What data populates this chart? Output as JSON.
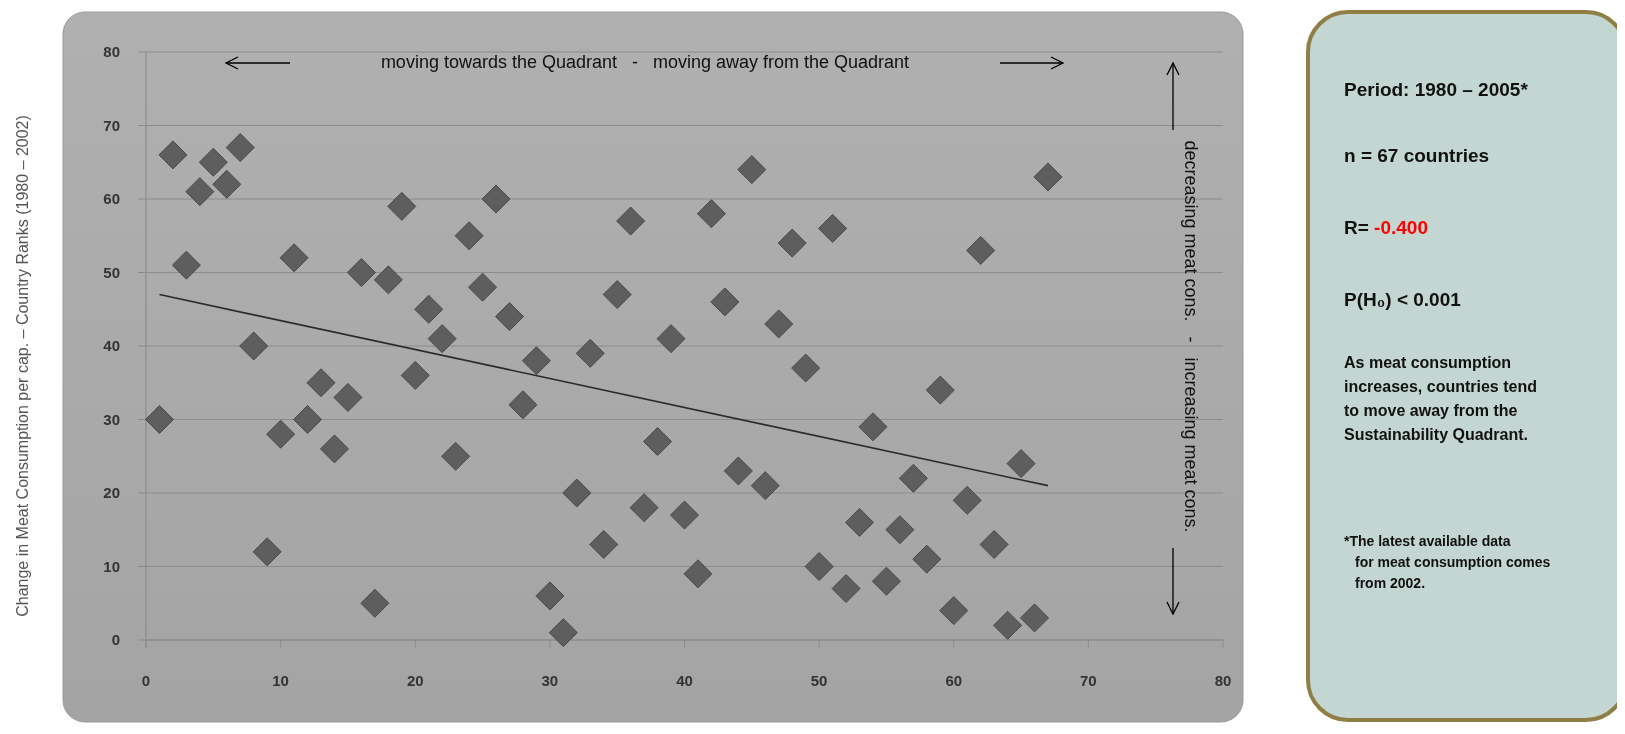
{
  "chart_data": {
    "type": "scatter",
    "ylabel": "Change in Meat Consumption per cap. – Country Ranks (1980 – 2002)",
    "xlim": [
      0,
      80
    ],
    "xticks": [
      0,
      10,
      20,
      30,
      40,
      50,
      60,
      70,
      80
    ],
    "ylim": [
      0,
      80
    ],
    "yticks": [
      0,
      10,
      20,
      30,
      40,
      50,
      60,
      70,
      80
    ],
    "grid": "y",
    "marker": "diamond",
    "series": [
      {
        "color": "#5e5e5e",
        "x": [
          1,
          2,
          3,
          4,
          5,
          6,
          7,
          8,
          9,
          10,
          11,
          12,
          13,
          14,
          15,
          16,
          17,
          18,
          19,
          20,
          21,
          22,
          23,
          24,
          25,
          26,
          27,
          28,
          29,
          30,
          31,
          32,
          33,
          34,
          35,
          36,
          37,
          38,
          39,
          40,
          41,
          42,
          43,
          44,
          45,
          46,
          47,
          48,
          49,
          50,
          51,
          52,
          53,
          54,
          55,
          56,
          57,
          58,
          59,
          60,
          61,
          62,
          63,
          64,
          65,
          66,
          67
        ],
        "values": [
          30,
          66,
          51,
          61,
          65,
          62,
          67,
          40,
          12,
          28,
          52,
          30,
          35,
          26,
          33,
          50,
          5,
          49,
          59,
          36,
          45,
          41,
          25,
          55,
          48,
          60,
          44,
          32,
          38,
          6,
          1,
          20,
          39,
          13,
          47,
          57,
          18,
          27,
          41,
          17,
          9,
          58,
          46,
          23,
          64,
          21,
          43,
          54,
          37,
          10,
          56,
          7,
          16,
          29,
          8,
          15,
          22,
          11,
          34,
          4,
          19,
          53,
          13,
          2,
          24,
          3,
          63
        ]
      },
      {
        "type": "line",
        "color": "#2a2a2a",
        "marker": "none",
        "line_style": "solid",
        "x": [
          1,
          67
        ],
        "values": [
          47,
          21
        ]
      }
    ],
    "annotations": [
      "moving towards the Quadrant   -   moving away from the Quadrant",
      "decreasing meat cons.   -   increasing meat cons.",
      "Period: 1980 – 2005*",
      "n = 67 countries",
      "R= -0.400",
      "P(H₀) < 0.001",
      "As meat consumption increases, countries tend to move away from the Sustainability Quadrant.",
      "*The latest available data for meat consumption comes from 2002."
    ]
  }
}
